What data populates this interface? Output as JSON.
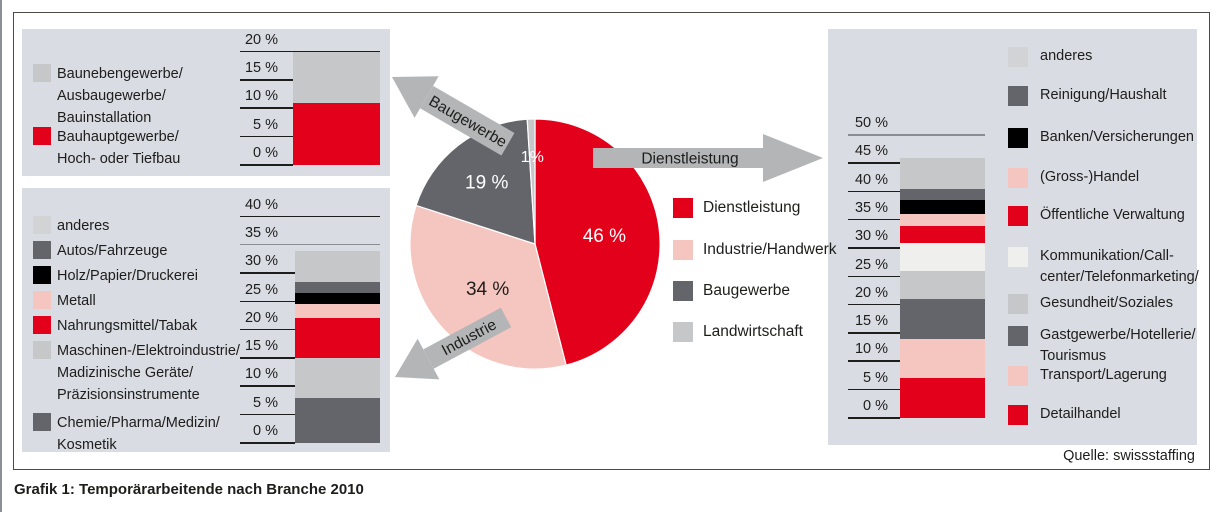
{
  "caption": "Grafik 1: Temporärarbeitende nach Branche 2010",
  "source": "Quelle: swissstaffing",
  "arrows": {
    "baugewerbe": "Baugewerbe",
    "dienstleistung": "Dienstleistung",
    "industrie": "Industrie"
  },
  "palette": {
    "red": "#e3001a",
    "pink": "#f5c5c0",
    "dark_gray": "#63656a",
    "gray": "#c6c7c9",
    "light_gray": "#d2d3d4",
    "near_white": "#efefed",
    "black": "#000000",
    "panel_bg": "#d9dce3",
    "arrow_gray": "#b4b5b7"
  },
  "chart_data": [
    {
      "id": "pie-branchen",
      "type": "pie",
      "title": "Temporärarbeitende nach Branche 2010",
      "unit": "%",
      "slices": [
        {
          "label": "Dienstleistung",
          "value": 46,
          "display": "46 %",
          "color_key": "red",
          "text_color": "#ffffff"
        },
        {
          "label": "Industrie/Handwerk",
          "value": 34,
          "display": "34 %",
          "color_key": "pink",
          "text_color": "#1d1d1b"
        },
        {
          "label": "Baugewerbe",
          "value": 19,
          "display": "19 %",
          "color_key": "dark_gray",
          "text_color": "#ffffff"
        },
        {
          "label": "Landwirtschaft",
          "value": 1,
          "display": "1%",
          "color_key": "gray",
          "text_color": "#ffffff"
        }
      ],
      "legend": [
        {
          "lines": [
            "Dienstleistung"
          ],
          "color_key": "red"
        },
        {
          "lines": [
            "Industrie/Handwerk"
          ],
          "color_key": "pink"
        },
        {
          "lines": [
            "Baugewerbe"
          ],
          "color_key": "dark_gray"
        },
        {
          "lines": [
            "Landwirtschaft"
          ],
          "color_key": "gray"
        }
      ]
    },
    {
      "id": "bar-baugewerbe",
      "type": "bar",
      "stacked": true,
      "sector": "Baugewerbe",
      "unit": "%",
      "ylim": [
        0,
        20
      ],
      "axis_ticks": [
        {
          "value": 0,
          "label": "0 %"
        },
        {
          "value": 5,
          "label": "5 %"
        },
        {
          "value": 10,
          "label": "10 %"
        },
        {
          "value": 15,
          "label": "15 %"
        },
        {
          "value": 20,
          "label": "20 %"
        }
      ],
      "segments_bottom_up": [
        {
          "label": "Bauhauptgewerbe/Hoch- oder Tiefbau",
          "value": 11,
          "display": "11 %",
          "color_key": "red",
          "text_color": "#ffffff"
        },
        {
          "label": "Baunebengewerbe/Ausbaugewerbe/Bauinstallation",
          "value": 9,
          "display": "9 %",
          "color_key": "gray",
          "text_color": "#1d1d1b"
        }
      ],
      "legend": [
        {
          "lines": [
            "Baunebengewerbe/",
            "Ausbaugewerbe/",
            "Bauinstallation"
          ],
          "color_key": "gray"
        },
        {
          "lines": [
            "Bauhauptgewerbe/",
            "Hoch- oder Tiefbau"
          ],
          "color_key": "red"
        }
      ]
    },
    {
      "id": "bar-industrie",
      "type": "bar",
      "stacked": true,
      "sector": "Industrie",
      "unit": "%",
      "ylim": [
        0,
        40
      ],
      "axis_ticks": [
        {
          "value": 0,
          "label": "0 %"
        },
        {
          "value": 5,
          "label": "5 %"
        },
        {
          "value": 10,
          "label": "10 %"
        },
        {
          "value": 15,
          "label": "15 %"
        },
        {
          "value": 20,
          "label": "20 %"
        },
        {
          "value": 25,
          "label": "25 %"
        },
        {
          "value": 30,
          "label": "30 %"
        },
        {
          "value": 35,
          "label": "35 %"
        },
        {
          "value": 40,
          "label": "40 %"
        }
      ],
      "segments_bottom_up": [
        {
          "label": "Chemie/Pharma/Medizin/Kosmetik",
          "value": 8,
          "display": "8 %",
          "color_key": "dark_gray",
          "text_color": "#ffffff"
        },
        {
          "label": "Maschinen-/Elektroindustrie/Madizinische Geräte/Präzisionsinstrumente",
          "value": 7,
          "display": "7 %",
          "color_key": "gray",
          "text_color": "#1d1d1b"
        },
        {
          "label": "Nahrungsmittel/Tabak",
          "value": 7,
          "display": "7 %",
          "color_key": "red",
          "text_color": "#ffffff"
        },
        {
          "label": "Metall",
          "value": 2.5,
          "display": "",
          "color_key": "pink",
          "text_color": ""
        },
        {
          "label": "Holz/Papier/Druckerei",
          "value": 2,
          "display": "",
          "color_key": "black",
          "text_color": ""
        },
        {
          "label": "Autos/Fahrzeuge",
          "value": 2,
          "display": "",
          "color_key": "dark_gray",
          "text_color": ""
        },
        {
          "label": "anderes",
          "value": 5.5,
          "display": "",
          "color_key": "gray",
          "text_color": ""
        }
      ],
      "legend": [
        {
          "lines": [
            "anderes"
          ],
          "color_key": "light_gray"
        },
        {
          "lines": [
            "Autos/Fahrzeuge"
          ],
          "color_key": "dark_gray"
        },
        {
          "lines": [
            "Holz/Papier/Druckerei"
          ],
          "color_key": "black"
        },
        {
          "lines": [
            "Metall"
          ],
          "color_key": "pink"
        },
        {
          "lines": [
            "Nahrungsmittel/Tabak"
          ],
          "color_key": "red"
        },
        {
          "lines": [
            "Maschinen-/Elektroindustrie/",
            "Madizinische Geräte/",
            "Präzisionsinstrumente"
          ],
          "color_key": "gray"
        },
        {
          "lines": [
            "Chemie/Pharma/Medizin/",
            "Kosmetik"
          ],
          "color_key": "dark_gray"
        }
      ]
    },
    {
      "id": "bar-dienstleistung",
      "type": "bar",
      "stacked": true,
      "sector": "Dienstleistung",
      "unit": "%",
      "ylim": [
        0,
        50
      ],
      "axis_ticks": [
        {
          "value": 0,
          "label": "0 %"
        },
        {
          "value": 5,
          "label": "5 %"
        },
        {
          "value": 10,
          "label": "10 %"
        },
        {
          "value": 15,
          "label": "15 %"
        },
        {
          "value": 20,
          "label": "20 %"
        },
        {
          "value": 25,
          "label": "25 %"
        },
        {
          "value": 30,
          "label": "30 %"
        },
        {
          "value": 35,
          "label": "35 %"
        },
        {
          "value": 40,
          "label": "40 %"
        },
        {
          "value": 45,
          "label": "45 %"
        },
        {
          "value": 50,
          "label": "50 %"
        }
      ],
      "segments_bottom_up": [
        {
          "label": "Detailhandel",
          "value": 7,
          "display": "7 %",
          "color_key": "red",
          "text_color": "#ffffff"
        },
        {
          "label": "Transport/Lagerung",
          "value": 7,
          "display": "7 %",
          "color_key": "pink",
          "text_color": "#1d1d1b"
        },
        {
          "label": "Gastgewerbe/Hotellerie/Tourismus",
          "value": 7,
          "display": "7 %",
          "color_key": "dark_gray",
          "text_color": "#ffffff"
        },
        {
          "label": "Gesundheit/Soziales",
          "value": 5,
          "display": "5 %",
          "color_key": "gray",
          "text_color": "#1d1d1b"
        },
        {
          "label": "Kommunikation/Call-center/Telefonmarketing",
          "value": 5,
          "display": "5 %",
          "color_key": "near_white",
          "text_color": "#1d1d1b"
        },
        {
          "label": "Öffentliche Verwaltung",
          "value": 3,
          "display": "",
          "color_key": "red",
          "text_color": ""
        },
        {
          "label": "(Gross-)Handel",
          "value": 2,
          "display": "",
          "color_key": "pink",
          "text_color": ""
        },
        {
          "label": "Banken/Versicherungen",
          "value": 2.5,
          "display": "",
          "color_key": "black",
          "text_color": ""
        },
        {
          "label": "Reinigung/Haushalt",
          "value": 2,
          "display": "",
          "color_key": "dark_gray",
          "text_color": ""
        },
        {
          "label": "anderes",
          "value": 5.5,
          "display": "",
          "color_key": "gray",
          "text_color": ""
        }
      ],
      "legend": [
        {
          "lines": [
            "anderes"
          ],
          "color_key": "light_gray"
        },
        {
          "lines": [
            "Reinigung/Haushalt"
          ],
          "color_key": "dark_gray"
        },
        {
          "lines": [
            "Banken/Versicherungen"
          ],
          "color_key": "black"
        },
        {
          "lines": [
            "(Gross-)Handel"
          ],
          "color_key": "pink"
        },
        {
          "lines": [
            "Öffentliche Verwaltung"
          ],
          "color_key": "red"
        },
        {
          "lines": [
            "Kommunikation/Call-",
            "center/Telefonmarketing/"
          ],
          "color_key": "near_white"
        },
        {
          "lines": [
            "Gesundheit/Soziales"
          ],
          "color_key": "gray"
        },
        {
          "lines": [
            "Gastgewerbe/Hotellerie/",
            "Tourismus"
          ],
          "color_key": "dark_gray"
        },
        {
          "lines": [
            "Transport/Lagerung"
          ],
          "color_key": "pink"
        },
        {
          "lines": [
            "Detailhandel"
          ],
          "color_key": "red"
        }
      ]
    }
  ]
}
